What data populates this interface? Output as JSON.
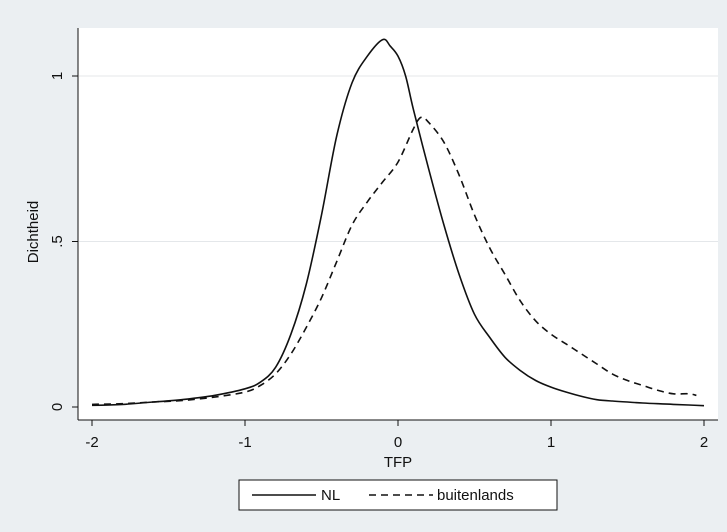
{
  "chart_data": {
    "type": "line",
    "title": "",
    "xlabel": "TFP",
    "ylabel": "Dichtheid",
    "xlim": [
      -2,
      2
    ],
    "ylim": [
      0,
      1.1
    ],
    "xticks": [
      -2,
      -1,
      0,
      1,
      2
    ],
    "xtick_labels": [
      "-2",
      "-1",
      "0",
      "1",
      "2"
    ],
    "yticks": [
      0,
      0.5,
      1
    ],
    "ytick_labels": [
      "0",
      ".5",
      "1"
    ],
    "grid": "horizontal",
    "legend_position": "bottom",
    "series": [
      {
        "name": "NL",
        "style": "solid",
        "color": "#111111",
        "x": [
          -2.0,
          -1.8,
          -1.6,
          -1.4,
          -1.2,
          -1.0,
          -0.9,
          -0.8,
          -0.7,
          -0.6,
          -0.5,
          -0.4,
          -0.3,
          -0.2,
          -0.1,
          -0.05,
          0.0,
          0.05,
          0.1,
          0.2,
          0.3,
          0.4,
          0.5,
          0.6,
          0.7,
          0.8,
          0.9,
          1.0,
          1.1,
          1.2,
          1.3,
          1.4,
          1.5,
          1.6,
          1.7,
          1.8,
          1.9,
          2.0
        ],
        "y": [
          0.005,
          0.008,
          0.015,
          0.023,
          0.035,
          0.055,
          0.075,
          0.12,
          0.22,
          0.37,
          0.58,
          0.82,
          0.98,
          1.06,
          1.11,
          1.09,
          1.06,
          1.0,
          0.9,
          0.72,
          0.55,
          0.4,
          0.28,
          0.21,
          0.15,
          0.11,
          0.08,
          0.06,
          0.045,
          0.032,
          0.022,
          0.018,
          0.015,
          0.012,
          0.01,
          0.008,
          0.006,
          0.004
        ]
      },
      {
        "name": "buitenlands",
        "style": "dashed",
        "color": "#111111",
        "x": [
          -2.0,
          -1.8,
          -1.6,
          -1.4,
          -1.2,
          -1.0,
          -0.9,
          -0.8,
          -0.7,
          -0.6,
          -0.5,
          -0.4,
          -0.3,
          -0.2,
          -0.1,
          0.0,
          0.1,
          0.15,
          0.2,
          0.3,
          0.4,
          0.5,
          0.6,
          0.7,
          0.8,
          0.9,
          1.0,
          1.1,
          1.2,
          1.3,
          1.4,
          1.5,
          1.6,
          1.7,
          1.8,
          1.9,
          1.95
        ],
        "y": [
          0.008,
          0.01,
          0.015,
          0.02,
          0.03,
          0.045,
          0.065,
          0.1,
          0.16,
          0.24,
          0.33,
          0.44,
          0.55,
          0.62,
          0.68,
          0.74,
          0.84,
          0.875,
          0.86,
          0.8,
          0.7,
          0.58,
          0.48,
          0.4,
          0.32,
          0.26,
          0.22,
          0.19,
          0.16,
          0.13,
          0.1,
          0.08,
          0.065,
          0.05,
          0.04,
          0.04,
          0.035
        ]
      }
    ]
  }
}
